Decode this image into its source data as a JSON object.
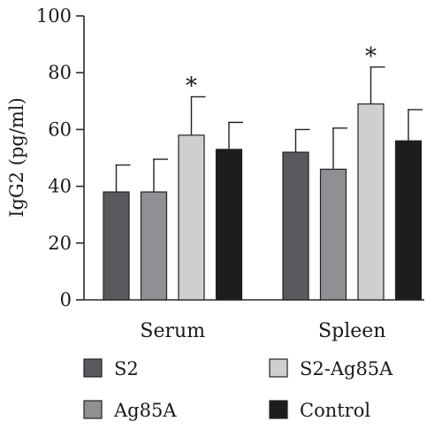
{
  "chart_data": {
    "type": "bar",
    "title": "",
    "xlabel": "",
    "ylabel": "IgG2 (pg/ml)",
    "ylim": [
      0,
      100
    ],
    "yticks": [
      0,
      20,
      40,
      60,
      80,
      100
    ],
    "categories": [
      "Serum",
      "Spleen"
    ],
    "series": [
      {
        "name": "S2",
        "color": "#5a5a5e",
        "values": [
          38,
          52
        ],
        "errors": [
          9.5,
          8
        ]
      },
      {
        "name": "Ag85A",
        "color": "#909094",
        "values": [
          38,
          46
        ],
        "errors": [
          11.5,
          14.5
        ]
      },
      {
        "name": "S2-Ag85A",
        "color": "#cfcfd1",
        "values": [
          58,
          69
        ],
        "errors": [
          13.5,
          13
        ]
      },
      {
        "name": "Control",
        "color": "#1e1c1e",
        "values": [
          53,
          56
        ],
        "errors": [
          9.5,
          11
        ]
      }
    ],
    "annotations": [
      {
        "category": "Serum",
        "series": "S2-Ag85A",
        "text": "*"
      },
      {
        "category": "Spleen",
        "series": "S2-Ag85A",
        "text": "*"
      }
    ],
    "legend": {
      "position": "bottom",
      "order": [
        "S2",
        "S2-Ag85A",
        "Ag85A",
        "Control"
      ]
    },
    "grid": false
  }
}
